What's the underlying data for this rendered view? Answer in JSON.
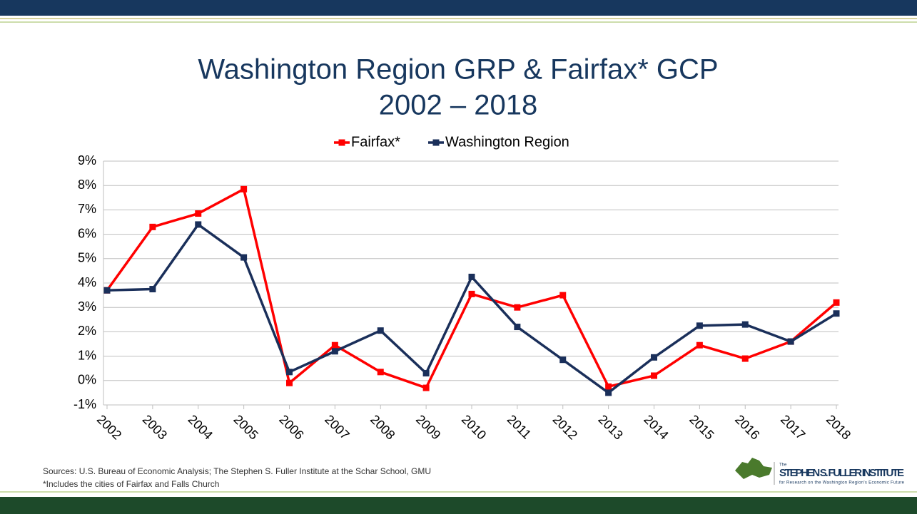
{
  "chart_data": {
    "type": "line",
    "title": "Washington Region GRP & Fairfax* GCP",
    "subtitle": "2002 – 2018",
    "categories": [
      "2002",
      "2003",
      "2004",
      "2005",
      "2006",
      "2007",
      "2008",
      "2009",
      "2010",
      "2011",
      "2012",
      "2013",
      "2014",
      "2015",
      "2016",
      "2017",
      "2018"
    ],
    "series": [
      {
        "name": "Fairfax*",
        "color": "#ff0000",
        "values": [
          3.7,
          6.3,
          6.85,
          7.85,
          -0.1,
          1.45,
          0.35,
          -0.3,
          3.55,
          3.0,
          3.5,
          -0.25,
          0.2,
          1.45,
          0.9,
          1.6,
          3.2
        ]
      },
      {
        "name": "Washington Region",
        "color": "#1a2f5a",
        "values": [
          3.7,
          3.75,
          6.4,
          5.05,
          0.35,
          1.2,
          2.05,
          0.3,
          4.25,
          2.2,
          0.85,
          -0.5,
          0.95,
          2.25,
          2.3,
          1.6,
          2.75
        ]
      }
    ],
    "ylim": [
      -1,
      9
    ],
    "yticks": [
      {
        "value": -1,
        "label": "-1%"
      },
      {
        "value": 0,
        "label": "0%"
      },
      {
        "value": 1,
        "label": "1%"
      },
      {
        "value": 2,
        "label": "2%"
      },
      {
        "value": 3,
        "label": "3%"
      },
      {
        "value": 4,
        "label": "4%"
      },
      {
        "value": 5,
        "label": "5%"
      },
      {
        "value": 6,
        "label": "6%"
      },
      {
        "value": 7,
        "label": "7%"
      },
      {
        "value": 8,
        "label": "8%"
      },
      {
        "value": 9,
        "label": "9%"
      }
    ],
    "grid": true,
    "legend": "top"
  },
  "sources": "Sources: U.S. Bureau of Economic Analysis; The Stephen S. Fuller Institute at the Schar School, GMU",
  "footnote": "*Includes the cities of Fairfax and Falls Church",
  "logo": {
    "prefix": "The",
    "name": "STEPHEN S. FULLER INSTITUTE",
    "tagline": "for Research on the Washington Region's Economic Future"
  }
}
